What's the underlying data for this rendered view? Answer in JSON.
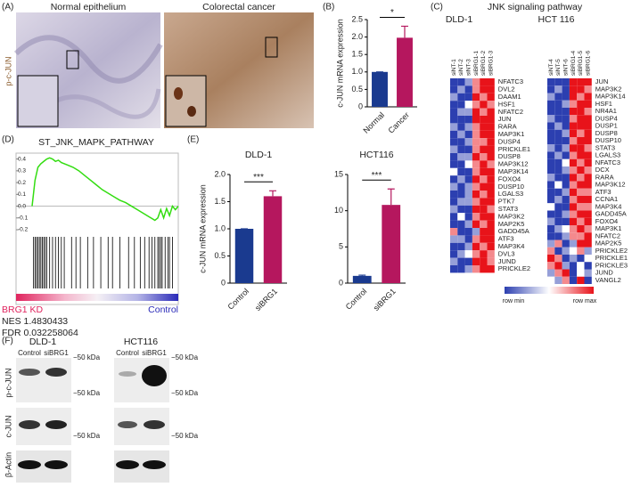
{
  "panel_a": {
    "label": "(A)",
    "left_title": "Normal epithelium",
    "right_title": "Colorectal cancer",
    "y_label": "p-c-JUN"
  },
  "chart_data": [
    {
      "type": "bar",
      "panel": "(B)",
      "y_label": "c-JUN mRNA expression",
      "categories": [
        "Normal",
        "Cancer"
      ],
      "values": [
        1,
        1.98
      ],
      "errors": [
        0,
        0.33
      ],
      "colors": [
        "#1a3a8f",
        "#b5175e"
      ],
      "ylim": [
        0,
        2.5
      ],
      "yticks": [
        0,
        0.5,
        {
          "value": 1,
          "label": "1.0"
        },
        1.5,
        {
          "value": 2,
          "label": "2.0"
        },
        2.5
      ],
      "significance": "*"
    },
    {
      "type": "gsea",
      "panel": "(D)",
      "title": "ST_JNK_MAPK_PATHWAY",
      "color": "#33dd11",
      "x": [
        0,
        2,
        4,
        6,
        8,
        10,
        12,
        14,
        16,
        18,
        20,
        24,
        28,
        32,
        36,
        40,
        44,
        48,
        52,
        56,
        60,
        64,
        68,
        72,
        76,
        80,
        84,
        86,
        88,
        90,
        92,
        94,
        96,
        98,
        100
      ],
      "values": [
        0,
        0.22,
        0.33,
        0.36,
        0.38,
        0.4,
        0.41,
        0.4,
        0.38,
        0.39,
        0.37,
        0.35,
        0.33,
        0.3,
        0.26,
        0.22,
        0.18,
        0.14,
        0.11,
        0.08,
        0.05,
        0.03,
        0,
        -0.03,
        -0.06,
        -0.09,
        -0.12,
        -0.1,
        -0.03,
        -0.1,
        -0.02,
        -0.08,
        0,
        -0.03,
        0
      ],
      "hits": [
        1,
        2,
        3,
        4,
        5,
        6,
        7,
        8,
        9,
        10,
        12,
        14,
        16,
        18,
        20,
        22,
        27,
        30,
        33,
        38,
        42,
        47,
        52,
        55,
        60,
        66,
        70,
        74,
        77,
        80,
        82,
        84,
        86,
        87,
        88,
        89,
        91,
        93,
        94,
        96
      ],
      "xlim": [
        0,
        100
      ],
      "ylim": [
        -0.23,
        0.45
      ],
      "yticks": [
        0.4,
        0.3,
        0.2,
        0.1,
        {
          "value": 0,
          "label": "0.0"
        },
        -0.1,
        -0.2
      ],
      "left_label": "BRG1 KD",
      "right_label": "Control",
      "nes": "NES 1.4830433",
      "fdr": "FDR 0.032258064"
    },
    {
      "type": "bar",
      "panel": "(E)",
      "title": "DLD-1",
      "y_label": "c-JUN mRNA expression",
      "categories": [
        "Control",
        "siBRG1"
      ],
      "values": [
        1,
        1.6
      ],
      "errors": [
        0,
        0.1
      ],
      "colors": [
        "#1a3a8f",
        "#b5175e"
      ],
      "ylim": [
        0,
        2
      ],
      "yticks": [
        0,
        0.5,
        {
          "value": 1,
          "label": "1.0"
        },
        1.5,
        {
          "value": 2,
          "label": "2.0"
        }
      ],
      "significance": "***"
    },
    {
      "type": "bar",
      "title": "HCT116",
      "categories": [
        "Control",
        "siBRG1"
      ],
      "values": [
        1,
        10.8
      ],
      "errors": [
        0.1,
        2.2
      ],
      "colors": [
        "#1a3a8f",
        "#b5175e"
      ],
      "ylim": [
        0,
        15
      ],
      "yticks": [
        0,
        5,
        10,
        15
      ],
      "significance": "***"
    },
    {
      "type": "heatmap",
      "panel": "(C)",
      "title": "JNK signaling pathway",
      "subtitle": "DLD-1",
      "legend": [
        "row min",
        "row max"
      ],
      "columns": [
        "siNT-1",
        "siNT-2",
        "siNT-3",
        "siBRG1-1",
        "siBRG1-2",
        "siBRG1-3"
      ],
      "rows": [
        "NFATC3",
        "DVL2",
        "DAAM1",
        "HSF1",
        "NFATC2",
        "JUN",
        "RARA",
        "MAP3K1",
        "DUSP4",
        "PRICKLE1",
        "DUSP8",
        "MAP3K12",
        "MAP3K14",
        "FOXO4",
        "DUSP10",
        "LGALS3",
        "PTK7",
        "STAT3",
        "MAP3K2",
        "MAP2K5",
        "GADD45A",
        "ATF3",
        "MAP3K4",
        "DVL3",
        "JUND",
        "PRICKLE2"
      ],
      "values": [
        [
          -1,
          -1,
          -0.5,
          0.5,
          1,
          1
        ],
        [
          -1,
          -0.5,
          -1,
          0.5,
          1,
          1
        ],
        [
          -0.5,
          -1,
          -1,
          1,
          0.5,
          1
        ],
        [
          -1,
          -1,
          0,
          0.5,
          1,
          0.5
        ],
        [
          -1,
          -0.5,
          -0.5,
          1,
          0.5,
          1
        ],
        [
          -1,
          -1,
          -1,
          1,
          1,
          1
        ],
        [
          -0.5,
          -1,
          -0.5,
          0.5,
          1,
          1
        ],
        [
          -1,
          -0.5,
          -1,
          0.5,
          1,
          1
        ],
        [
          -1,
          -1,
          -0.5,
          0.5,
          0.5,
          1
        ],
        [
          -0.5,
          -1,
          -1,
          0.5,
          1,
          1
        ],
        [
          -1,
          -0.5,
          -0.5,
          1,
          0.5,
          1
        ],
        [
          -1,
          -1,
          0,
          0.5,
          1,
          0.5
        ],
        [
          0,
          -1,
          -1,
          0.5,
          1,
          1
        ],
        [
          -1,
          -0.5,
          -1,
          1,
          0.5,
          1
        ],
        [
          -0.5,
          -1,
          -0.5,
          0.5,
          1,
          1
        ],
        [
          -1,
          -1,
          -0.5,
          1,
          0.5,
          1
        ],
        [
          -1,
          -0.5,
          -0.5,
          0.5,
          1,
          1
        ],
        [
          -0.5,
          -1,
          -1,
          1,
          1,
          0.5
        ],
        [
          -1,
          0,
          -1,
          0.5,
          1,
          1
        ],
        [
          -1,
          -1,
          -0.5,
          1,
          0.5,
          1
        ],
        [
          0.5,
          -1,
          -1,
          -0.5,
          1,
          1
        ],
        [
          -0.5,
          -0.5,
          -1,
          0.5,
          1,
          1
        ],
        [
          -1,
          -1,
          -0.5,
          1,
          0.5,
          1
        ],
        [
          -1,
          -0.5,
          0,
          0.5,
          1,
          0.5
        ],
        [
          -0.5,
          -1,
          -1,
          1,
          1,
          0.5
        ],
        [
          -1,
          -1,
          -0.5,
          0.5,
          1,
          1
        ]
      ]
    },
    {
      "type": "heatmap",
      "subtitle": "HCT 116",
      "columns": [
        "siNT-4",
        "siNT-5",
        "siNT-6",
        "siBRG1-4",
        "siBRG1-5",
        "siBRG1-6"
      ],
      "rows": [
        "JUN",
        "MAP3K2",
        "MAP3K14",
        "HSF1",
        "NR4A1",
        "DUSP4",
        "DUSP1",
        "DUSP8",
        "DUSP10",
        "STAT3",
        "LGALS3",
        "NFATC3",
        "DCX",
        "RARA",
        "MAP3K12",
        "ATF3",
        "CCNA1",
        "MAP3K4",
        "GADD45A",
        "FOXO4",
        "MAP3K1",
        "NFATC2",
        "MAP2K5",
        "PRICKLE2",
        "PRICKLE1",
        "PRICKLE3",
        "JUND",
        "VANGL2"
      ],
      "values": [
        [
          -1,
          -1,
          -1,
          1,
          1,
          1
        ],
        [
          -1,
          -0.5,
          -1,
          1,
          1,
          0.5
        ],
        [
          -0.5,
          -1,
          -1,
          1,
          0.5,
          1
        ],
        [
          -1,
          -1,
          -0.5,
          0.5,
          1,
          1
        ],
        [
          -1,
          -1,
          -1,
          1,
          1,
          0.5
        ],
        [
          -0.5,
          -1,
          -1,
          0.5,
          1,
          1
        ],
        [
          -1,
          -0.5,
          -1,
          1,
          1,
          1
        ],
        [
          -1,
          -1,
          -0.5,
          1,
          0.5,
          1
        ],
        [
          -1,
          -1,
          -1,
          0.5,
          1,
          1
        ],
        [
          -0.5,
          -1,
          -0.5,
          1,
          1,
          0.5
        ],
        [
          -1,
          -0.5,
          -1,
          0.5,
          1,
          1
        ],
        [
          -1,
          -1,
          0,
          1,
          0.5,
          1
        ],
        [
          -1,
          -1,
          -0.5,
          0.5,
          1,
          0.5
        ],
        [
          -0.5,
          -1,
          -1,
          1,
          0.5,
          1
        ],
        [
          -1,
          0,
          -1,
          0.5,
          1,
          1
        ],
        [
          -1,
          -1,
          -0.5,
          1,
          0.5,
          0.5
        ],
        [
          -1,
          -0.5,
          -1,
          0.5,
          1,
          1
        ],
        [
          0,
          -1,
          -1,
          1,
          0.5,
          0.5
        ],
        [
          -1,
          -1,
          -0.5,
          0.5,
          1,
          1
        ],
        [
          -0.5,
          -1,
          -1,
          1,
          0.5,
          1
        ],
        [
          -1,
          -0.5,
          0,
          0.5,
          1,
          0.5
        ],
        [
          -1,
          -1,
          -0.5,
          0.5,
          0.5,
          1
        ],
        [
          -0.5,
          0.5,
          -1,
          -0.5,
          1,
          1
        ],
        [
          0.5,
          -1,
          -0.5,
          0,
          0.5,
          -0.5
        ],
        [
          1,
          0.5,
          -1,
          -0.5,
          -1,
          0
        ],
        [
          0.5,
          1,
          -0.5,
          -1,
          0,
          -1
        ],
        [
          -0.5,
          0.5,
          1,
          -1,
          0,
          -0.5
        ],
        [
          0,
          -0.5,
          0.5,
          -1,
          1,
          -1
        ]
      ]
    }
  ],
  "panel_f": {
    "label": "(F)",
    "groups": [
      "DLD-1",
      "HCT116"
    ],
    "lanes": [
      "Control",
      "siBRG1"
    ],
    "marker": "−50 kDa",
    "rows": [
      "p-c-JUN",
      "c-JUN",
      "β-Actin"
    ]
  }
}
